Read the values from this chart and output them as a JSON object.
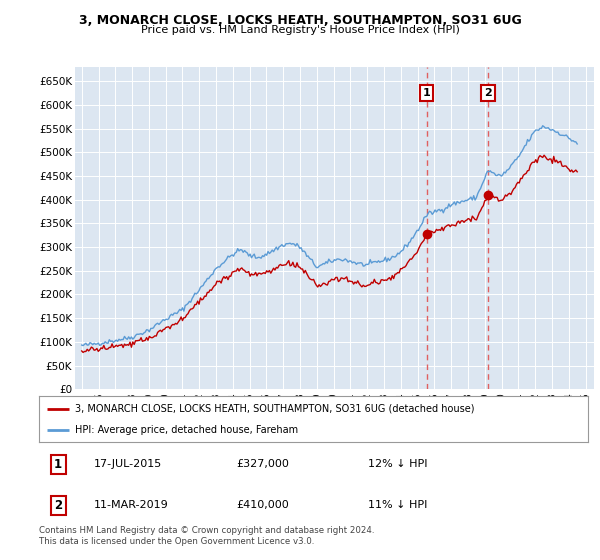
{
  "title1": "3, MONARCH CLOSE, LOCKS HEATH, SOUTHAMPTON, SO31 6UG",
  "title2": "Price paid vs. HM Land Registry's House Price Index (HPI)",
  "ylabel_ticks": [
    "£0",
    "£50K",
    "£100K",
    "£150K",
    "£200K",
    "£250K",
    "£300K",
    "£350K",
    "£400K",
    "£450K",
    "£500K",
    "£550K",
    "£600K",
    "£650K"
  ],
  "ytick_vals": [
    0,
    50000,
    100000,
    150000,
    200000,
    250000,
    300000,
    350000,
    400000,
    450000,
    500000,
    550000,
    600000,
    650000
  ],
  "hpi_color": "#5b9bd5",
  "price_color": "#c00000",
  "vline_color": "#e06060",
  "sale1_year": 2015.54,
  "sale1_price": 327000,
  "sale2_year": 2019.19,
  "sale2_price": 410000,
  "legend_line1": "3, MONARCH CLOSE, LOCKS HEATH, SOUTHAMPTON, SO31 6UG (detached house)",
  "legend_line2": "HPI: Average price, detached house, Fareham",
  "table_row1": [
    "1",
    "17-JUL-2015",
    "£327,000",
    "12% ↓ HPI"
  ],
  "table_row2": [
    "2",
    "11-MAR-2019",
    "£410,000",
    "11% ↓ HPI"
  ],
  "footnote": "Contains HM Land Registry data © Crown copyright and database right 2024.\nThis data is licensed under the Open Government Licence v3.0.",
  "xlim_start": 1994.6,
  "xlim_end": 2025.5,
  "ylim_bottom": 0,
  "ylim_top": 680000,
  "background_plot": "#dce6f1",
  "background_fig": "#ffffff",
  "grid_color": "#ffffff"
}
